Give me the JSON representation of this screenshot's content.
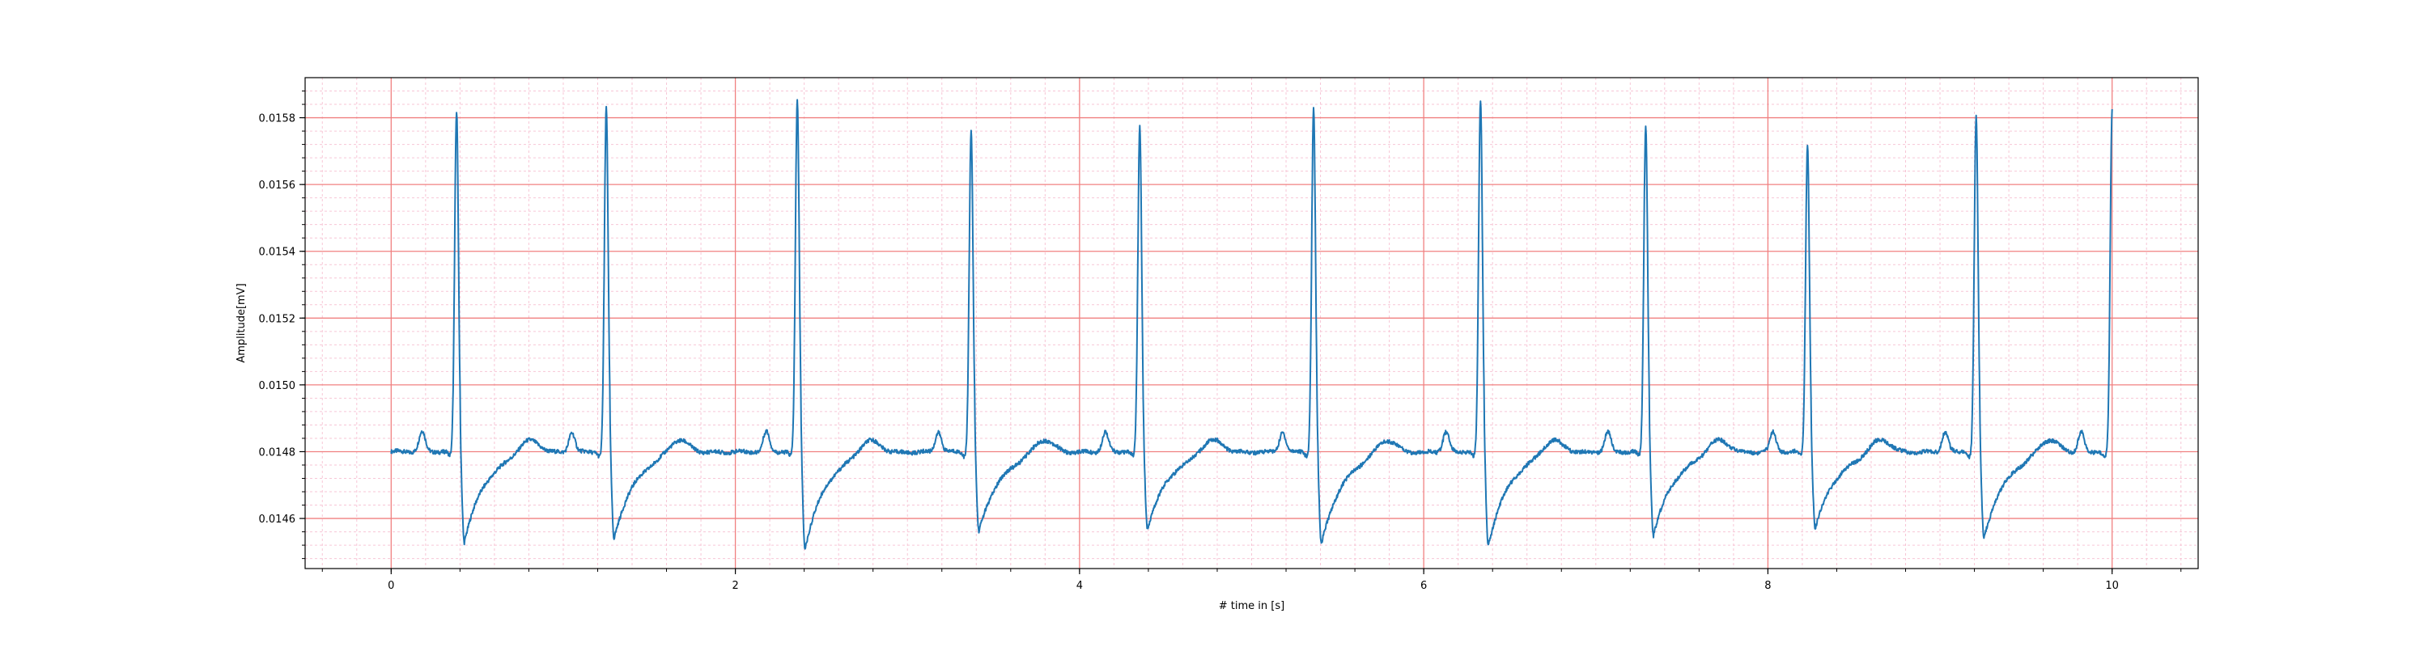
{
  "chart_data": {
    "type": "line",
    "xlabel": "# time in [s]",
    "ylabel": "Amplitude[mV]",
    "xlim": [
      -0.5,
      10.5
    ],
    "ylim": [
      0.01445,
      0.01592
    ],
    "x_ticks": [
      0,
      2,
      4,
      6,
      8,
      10
    ],
    "x_tick_labels": [
      "0",
      "2",
      "4",
      "6",
      "8",
      "10"
    ],
    "y_ticks": [
      0.0146,
      0.0148,
      0.015,
      0.0152,
      0.0154,
      0.0156,
      0.0158
    ],
    "y_tick_labels": [
      "0.0146",
      "0.0148",
      "0.0150",
      "0.0152",
      "0.0154",
      "0.0156",
      "0.0158"
    ],
    "grid": {
      "major": "red",
      "minor": "pink"
    },
    "baseline": 0.0148,
    "series": [
      {
        "color": "#1f77b4",
        "beats": [
          {
            "r_time": 0.38,
            "r_peak": 0.01582,
            "trough": 0.01453
          },
          {
            "r_time": 1.25,
            "r_peak": 0.01583,
            "trough": 0.01454
          },
          {
            "r_time": 2.36,
            "r_peak": 0.01585,
            "trough": 0.01451
          },
          {
            "r_time": 3.37,
            "r_peak": 0.01576,
            "trough": 0.01456
          },
          {
            "r_time": 4.35,
            "r_peak": 0.01577,
            "trough": 0.01457
          },
          {
            "r_time": 5.36,
            "r_peak": 0.01583,
            "trough": 0.01452
          },
          {
            "r_time": 6.33,
            "r_peak": 0.01585,
            "trough": 0.01452
          },
          {
            "r_time": 7.29,
            "r_peak": 0.01578,
            "trough": 0.01455
          },
          {
            "r_time": 8.23,
            "r_peak": 0.01572,
            "trough": 0.01457
          },
          {
            "r_time": 9.21,
            "r_peak": 0.0158,
            "trough": 0.01454
          },
          {
            "r_time": 10.0,
            "r_peak": 0.01582,
            "trough": 0.01475
          }
        ],
        "p_waves": [
          0.18,
          1.05,
          2.18,
          3.18,
          4.15,
          5.18,
          6.13,
          7.07,
          8.03,
          9.03,
          9.82
        ]
      }
    ]
  }
}
